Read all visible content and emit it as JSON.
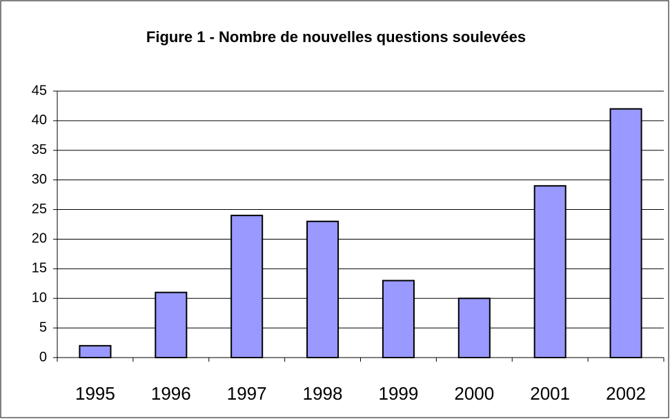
{
  "chart_data": {
    "type": "bar",
    "title": "Figure 1 - Nombre de nouvelles questions soulevées",
    "categories": [
      "1995",
      "1996",
      "1997",
      "1998",
      "1999",
      "2000",
      "2001",
      "2002"
    ],
    "values": [
      2,
      11,
      24,
      23,
      13,
      10,
      29,
      42
    ],
    "color": "#9999ff",
    "ylim": [
      0,
      45
    ],
    "yticks": [
      0,
      5,
      10,
      15,
      20,
      25,
      30,
      35,
      40,
      45
    ],
    "grid": true
  }
}
